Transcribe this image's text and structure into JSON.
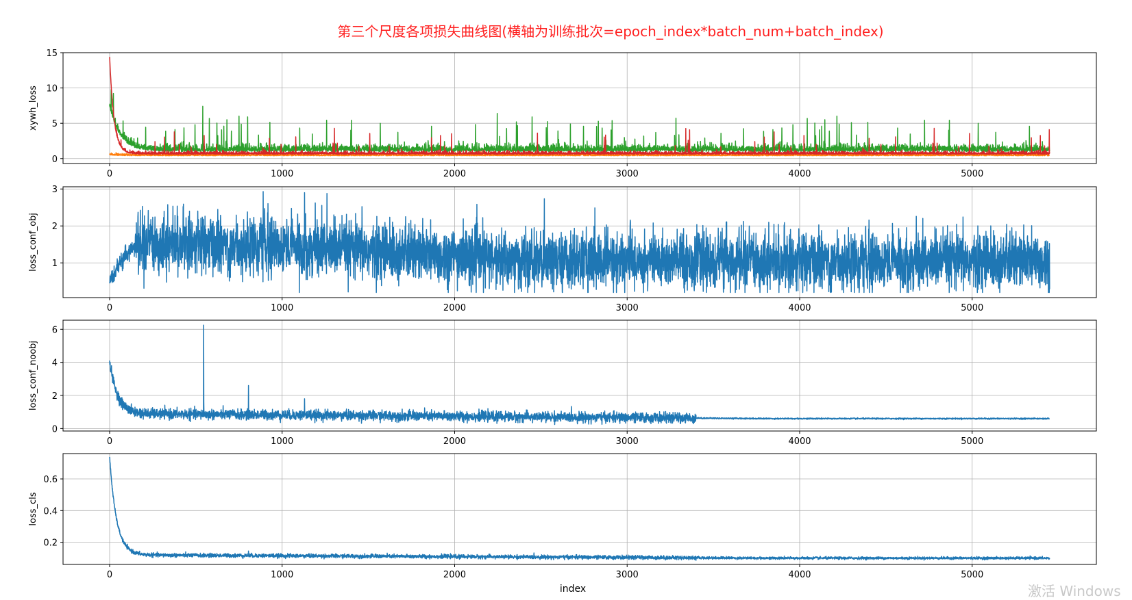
{
  "figure": {
    "title": "第三个尺度各项损失曲线图(横轴为训练批次=epoch_index*batch_num+batch_index)",
    "title_color": "#ff2020",
    "watermark": "激活 Windows"
  },
  "chart_data": [
    {
      "type": "line",
      "ylabel": "xywh_loss",
      "xlabel": "",
      "xlim": [
        -270,
        5720
      ],
      "ylim": [
        -0.7,
        15
      ],
      "xticks": [
        0,
        1000,
        2000,
        3000,
        4000,
        5000
      ],
      "yticks": [
        0,
        5,
        10,
        15
      ],
      "grid": true,
      "n_points": 5450,
      "series": [
        {
          "color": "#ff7f0e",
          "start": 0.5,
          "peak": 0.8,
          "decay": 40,
          "base": 0.4,
          "noise": 0.15,
          "spike_prob": 0.0,
          "spike_max": 0
        },
        {
          "color": "#2ca02c",
          "start": 7.4,
          "peak": 7.4,
          "decay": 60,
          "base": 1.0,
          "noise": 0.45,
          "spike_prob": 0.022,
          "spike_max": 4.5
        },
        {
          "color": "#d62728",
          "start": 14.4,
          "peak": 14.4,
          "decay": 25,
          "base": 0.6,
          "noise": 0.2,
          "spike_prob": 0.01,
          "spike_max": 3.6
        }
      ]
    },
    {
      "type": "line",
      "ylabel": "loss_conf_obj",
      "xlabel": "",
      "xlim": [
        -270,
        5720
      ],
      "ylim": [
        0.06,
        3.06
      ],
      "xticks": [
        0,
        1000,
        2000,
        3000,
        4000,
        5000
      ],
      "yticks": [
        1,
        2,
        3
      ],
      "grid": true,
      "n_points": 5450,
      "series": [
        {
          "color": "#1f77b4",
          "kind": "obj",
          "start": 0.55,
          "end": 1.05,
          "noise": 0.38,
          "max": 2.93
        }
      ]
    },
    {
      "type": "line",
      "ylabel": "loss_conf_noobj",
      "xlabel": "",
      "xlim": [
        -270,
        5720
      ],
      "ylim": [
        -0.15,
        6.55
      ],
      "xticks": [
        0,
        1000,
        2000,
        3000,
        4000,
        5000
      ],
      "yticks": [
        0,
        2,
        4,
        6
      ],
      "grid": true,
      "n_points": 5450,
      "series": [
        {
          "color": "#1f77b4",
          "kind": "decay",
          "start": 4.1,
          "base": 0.6,
          "mid": 0.9,
          "decay": 45,
          "noise_early": 0.15,
          "noise_late": 0.02,
          "max": 6.25
        }
      ]
    },
    {
      "type": "line",
      "ylabel": "loss_cls",
      "xlabel": "index",
      "xlim": [
        -270,
        5720
      ],
      "ylim": [
        0.06,
        0.76
      ],
      "xticks": [
        0,
        1000,
        2000,
        3000,
        4000,
        5000
      ],
      "yticks": [
        0.2,
        0.4,
        0.6
      ],
      "ytick_labels": [
        "0.2",
        "0.4",
        "0.6"
      ],
      "grid": true,
      "n_points": 5450,
      "series": [
        {
          "color": "#1f77b4",
          "kind": "decay",
          "start": 0.74,
          "base": 0.1,
          "mid": 0.12,
          "decay": 40,
          "noise_early": 0.006,
          "noise_late": 0.004,
          "max": 0.74
        }
      ]
    }
  ]
}
